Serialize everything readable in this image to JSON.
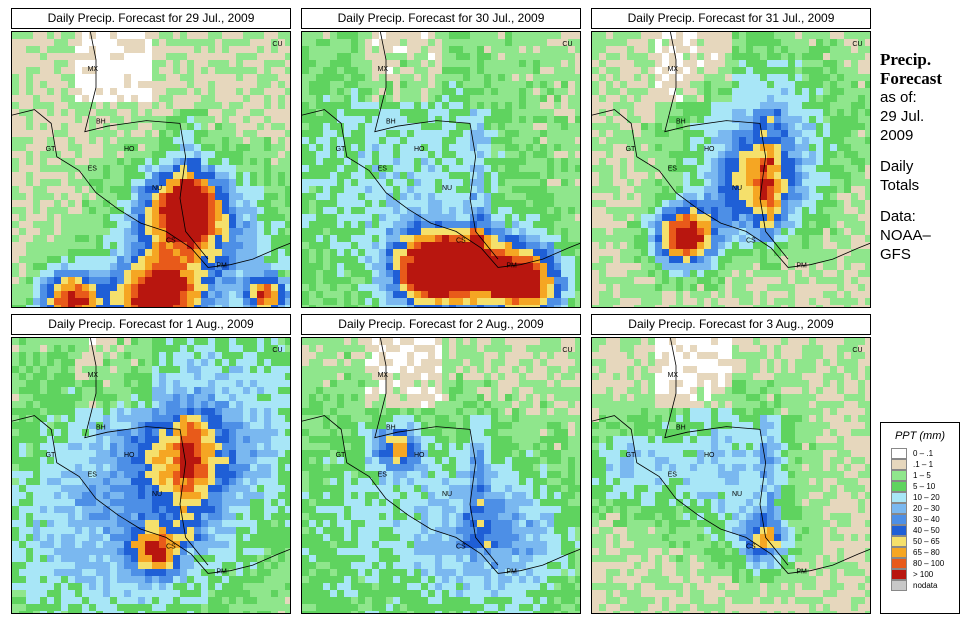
{
  "panels": [
    {
      "title": "Daily Precip. Forecast for  29 Jul., 2009"
    },
    {
      "title": "Daily Precip. Forecast for  30 Jul., 2009"
    },
    {
      "title": "Daily Precip. Forecast for  31 Jul., 2009"
    },
    {
      "title": "Daily Precip. Forecast for  1 Aug., 2009"
    },
    {
      "title": "Daily Precip. Forecast for  2 Aug., 2009"
    },
    {
      "title": "Daily Precip. Forecast for  3 Aug., 2009"
    }
  ],
  "country_labels": [
    "MX",
    "CU",
    "BH",
    "GT",
    "HO",
    "ES",
    "NU",
    "CS",
    "PM"
  ],
  "side": {
    "title_line1": "Precip.",
    "title_line2": "Forecast",
    "asof_line1": "as of:",
    "asof_line2": "29 Jul.",
    "asof_line3": "2009",
    "totals_line1": "Daily",
    "totals_line2": "Totals",
    "data_line1": "Data:",
    "data_line2": "NOAA–",
    "data_line3": "GFS"
  },
  "legend": {
    "title": "PPT (mm)",
    "items": [
      {
        "label": "0 – .1",
        "color": "#ffffff"
      },
      {
        "label": ".1 – 1",
        "color": "#e6d7bd"
      },
      {
        "label": "1 – 5",
        "color": "#8fe68c"
      },
      {
        "label": "5 – 10",
        "color": "#5fd35f"
      },
      {
        "label": "10 – 20",
        "color": "#a8e6f7"
      },
      {
        "label": "20 – 30",
        "color": "#7ab8f0"
      },
      {
        "label": "30 – 40",
        "color": "#4d8fe6"
      },
      {
        "label": "40 – 50",
        "color": "#1f5fd6"
      },
      {
        "label": "50 – 65",
        "color": "#f5e06b"
      },
      {
        "label": "65 – 80",
        "color": "#f5a623"
      },
      {
        "label": "80 – 100",
        "color": "#e85a1a"
      },
      {
        "label": "> 100",
        "color": "#b8160f"
      },
      {
        "label": "nodata",
        "color": "#c8c8c8"
      }
    ]
  }
}
